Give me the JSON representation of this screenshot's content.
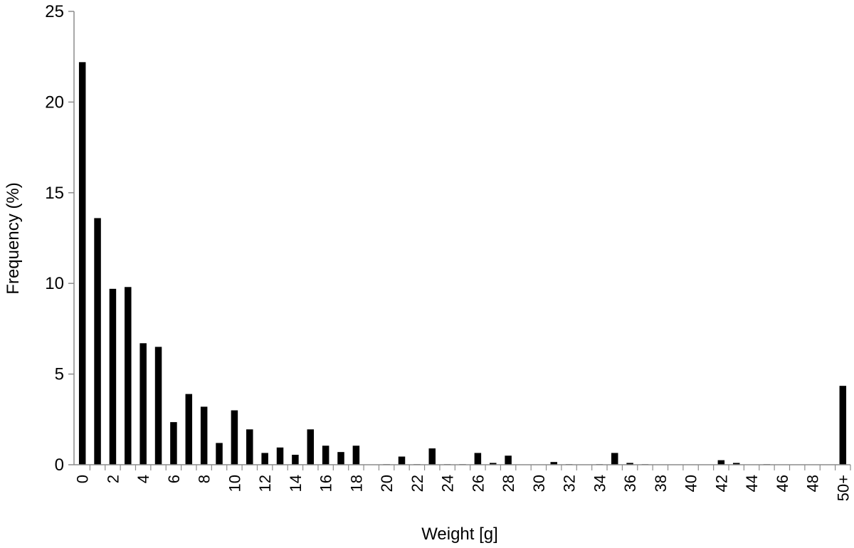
{
  "chart_data": {
    "type": "bar",
    "title": "",
    "xlabel": "Weight [g]",
    "ylabel": "Frequency (%)",
    "ylim": [
      0,
      25
    ],
    "yticks": [
      0,
      5,
      10,
      15,
      20,
      25
    ],
    "grid": false,
    "legend": "none",
    "bar_color": "#000000",
    "axis_color": "#8c8c8c",
    "categories": [
      "0",
      "1",
      "2",
      "3",
      "4",
      "5",
      "6",
      "7",
      "8",
      "9",
      "10",
      "11",
      "12",
      "13",
      "14",
      "15",
      "16",
      "17",
      "18",
      "19",
      "20",
      "21",
      "22",
      "23",
      "24",
      "25",
      "26",
      "27",
      "28",
      "29",
      "30",
      "31",
      "32",
      "33",
      "34",
      "35",
      "36",
      "37",
      "38",
      "39",
      "40",
      "41",
      "42",
      "43",
      "44",
      "45",
      "46",
      "47",
      "48",
      "49",
      "50+"
    ],
    "xtick_labels": [
      "0",
      "",
      "2",
      "",
      "4",
      "",
      "6",
      "",
      "8",
      "",
      "10",
      "",
      "12",
      "",
      "14",
      "",
      "16",
      "",
      "18",
      "",
      "20",
      "",
      "22",
      "",
      "24",
      "",
      "26",
      "",
      "28",
      "",
      "30",
      "",
      "32",
      "",
      "34",
      "",
      "36",
      "",
      "38",
      "",
      "40",
      "",
      "42",
      "",
      "44",
      "",
      "46",
      "",
      "48",
      "",
      "50+"
    ],
    "values": [
      22.2,
      13.6,
      9.7,
      9.8,
      6.7,
      6.5,
      2.35,
      3.9,
      3.2,
      1.2,
      3.0,
      1.95,
      0.65,
      0.95,
      0.55,
      1.95,
      1.05,
      0.7,
      1.05,
      0,
      0.03,
      0.45,
      0.03,
      0.9,
      0.03,
      0.03,
      0.65,
      0.1,
      0.5,
      0,
      0,
      0.15,
      0.03,
      0,
      0.03,
      0.65,
      0.1,
      0.03,
      0,
      0,
      0,
      0,
      0.25,
      0.1,
      0,
      0.03,
      0,
      0,
      0,
      0,
      4.35
    ]
  }
}
